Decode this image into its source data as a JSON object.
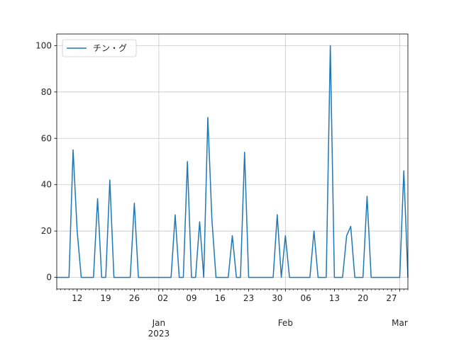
{
  "chart_data": {
    "type": "line",
    "x": [
      "2022-12-07",
      "2022-12-08",
      "2022-12-09",
      "2022-12-10",
      "2022-12-11",
      "2022-12-12",
      "2022-12-13",
      "2022-12-14",
      "2022-12-15",
      "2022-12-16",
      "2022-12-17",
      "2022-12-18",
      "2022-12-19",
      "2022-12-20",
      "2022-12-21",
      "2022-12-22",
      "2022-12-23",
      "2022-12-24",
      "2022-12-25",
      "2022-12-26",
      "2022-12-27",
      "2022-12-28",
      "2022-12-29",
      "2022-12-30",
      "2022-12-31",
      "2023-01-01",
      "2023-01-02",
      "2023-01-03",
      "2023-01-04",
      "2023-01-05",
      "2023-01-06",
      "2023-01-07",
      "2023-01-08",
      "2023-01-09",
      "2023-01-10",
      "2023-01-11",
      "2023-01-12",
      "2023-01-13",
      "2023-01-14",
      "2023-01-15",
      "2023-01-16",
      "2023-01-17",
      "2023-01-18",
      "2023-01-19",
      "2023-01-20",
      "2023-01-21",
      "2023-01-22",
      "2023-01-23",
      "2023-01-24",
      "2023-01-25",
      "2023-01-26",
      "2023-01-27",
      "2023-01-28",
      "2023-01-29",
      "2023-01-30",
      "2023-01-31",
      "2023-02-01",
      "2023-02-02",
      "2023-02-03",
      "2023-02-04",
      "2023-02-05",
      "2023-02-06",
      "2023-02-07",
      "2023-02-08",
      "2023-02-09",
      "2023-02-10",
      "2023-02-11",
      "2023-02-12",
      "2023-02-13",
      "2023-02-14",
      "2023-02-15",
      "2023-02-16",
      "2023-02-17",
      "2023-02-18",
      "2023-02-19",
      "2023-02-20",
      "2023-02-21",
      "2023-02-22",
      "2023-02-23",
      "2023-02-24",
      "2023-02-25",
      "2023-02-26",
      "2023-02-27",
      "2023-02-28",
      "2023-03-01",
      "2023-03-02",
      "2023-03-03"
    ],
    "series": [
      {
        "name": "チン・グ",
        "color": "#1f77b4",
        "values": [
          0,
          0,
          0,
          0,
          55,
          20,
          0,
          0,
          0,
          0,
          34,
          0,
          0,
          42,
          0,
          0,
          0,
          0,
          0,
          32,
          0,
          0,
          0,
          0,
          0,
          0,
          0,
          0,
          0,
          27,
          0,
          0,
          50,
          0,
          0,
          24,
          0,
          69,
          25,
          0,
          0,
          0,
          0,
          18,
          0,
          0,
          54,
          0,
          0,
          0,
          0,
          0,
          0,
          0,
          27,
          0,
          18,
          0,
          0,
          0,
          0,
          0,
          0,
          20,
          0,
          0,
          0,
          100,
          0,
          0,
          0,
          18,
          22,
          0,
          0,
          0,
          35,
          0,
          0,
          0,
          0,
          0,
          0,
          0,
          0,
          46,
          0
        ]
      }
    ],
    "xlim": [
      "2022-12-07",
      "2023-03-03"
    ],
    "xticks": [
      {
        "value": "2022-12-12",
        "label": "12"
      },
      {
        "value": "2022-12-19",
        "label": "19"
      },
      {
        "value": "2022-12-26",
        "label": "26"
      },
      {
        "value": "2023-01-02",
        "label": "02"
      },
      {
        "value": "2023-01-09",
        "label": "09"
      },
      {
        "value": "2023-01-16",
        "label": "16"
      },
      {
        "value": "2023-01-23",
        "label": "23"
      },
      {
        "value": "2023-01-30",
        "label": "30"
      },
      {
        "value": "2023-02-06",
        "label": "06"
      },
      {
        "value": "2023-02-13",
        "label": "13"
      },
      {
        "value": "2023-02-20",
        "label": "20"
      },
      {
        "value": "2023-02-27",
        "label": "27"
      }
    ],
    "month_ticks": [
      {
        "value": "2023-01-01",
        "label": "Jan\n2023"
      },
      {
        "value": "2023-02-01",
        "label": "Feb"
      },
      {
        "value": "2023-03-01",
        "label": "Mar"
      }
    ],
    "ylim": [
      -5,
      105
    ],
    "yticks": [
      0,
      20,
      40,
      60,
      80,
      100
    ],
    "grid": true,
    "legend": "upper left"
  }
}
